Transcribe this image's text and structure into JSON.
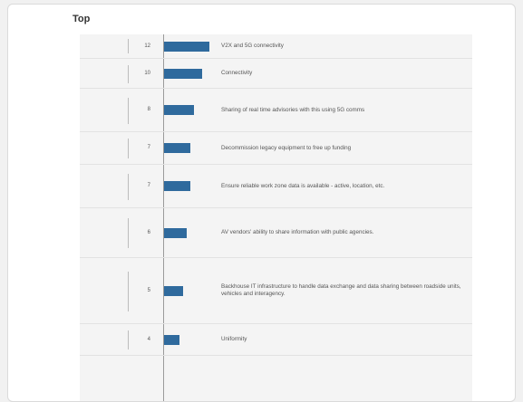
{
  "title": "Top",
  "colors": {
    "bar": "#2f6a9d"
  },
  "chart_data": {
    "type": "bar",
    "orientation": "horizontal",
    "title": "Top",
    "categories": [
      "V2X and 5G connectivity",
      "Connectivity",
      "Sharing of real time advisories with this using 5G comms",
      "Decommission legacy equipment to free up funding",
      "Ensure reliable work zone data is available - active, location, etc.",
      "AV vendors' ability to share information with public agencies.",
      "Backhouse IT infrastructure to handle data exchange and data sharing between roadside units, vehicles and interagency.",
      "Uniformity"
    ],
    "values": [
      12,
      10,
      8,
      7,
      7,
      6,
      5,
      4
    ],
    "value_labels": [
      "12",
      "10",
      "8",
      "7",
      "7",
      "6",
      "5",
      "4"
    ],
    "xlim": [
      0,
      12
    ]
  }
}
